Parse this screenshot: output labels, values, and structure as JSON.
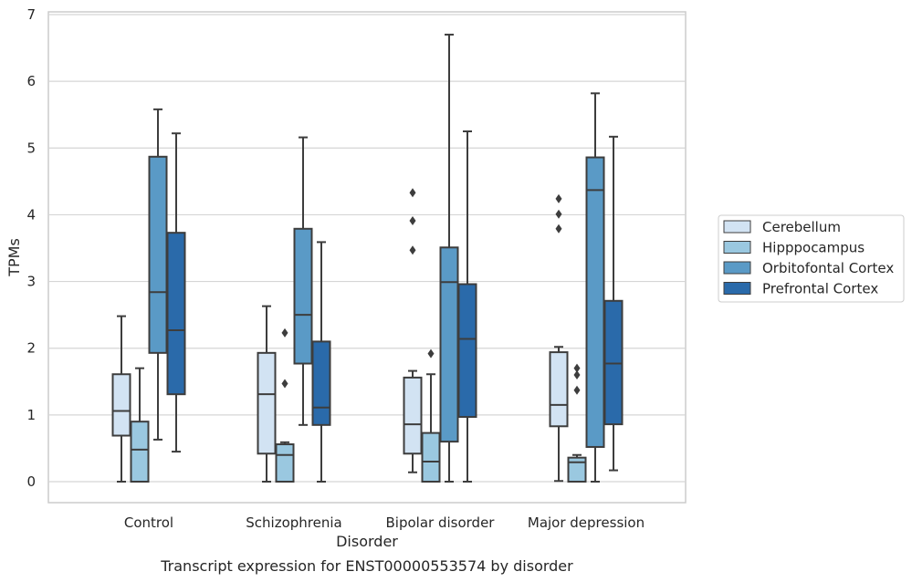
{
  "chart_data": {
    "type": "box",
    "xlabel": "Disorder",
    "ylabel": "TPMs",
    "caption": "Transcript expression for ENST00000553574 by disorder",
    "ylim": [
      -0.3,
      7.05
    ],
    "yticks": [
      0,
      1,
      2,
      3,
      4,
      5,
      6,
      7
    ],
    "grid": "horizontal",
    "legend_position": "right",
    "categories": [
      "Control",
      "Schizophrenia",
      "Bipolar disorder",
      "Major depression"
    ],
    "series": [
      {
        "name": "Cerebellum",
        "color": "#d2e3f3",
        "boxes": [
          {
            "whislo": 0.0,
            "q1": 0.69,
            "med": 1.06,
            "q3": 1.61,
            "whishi": 2.48,
            "fliers": []
          },
          {
            "whislo": 0.0,
            "q1": 0.42,
            "med": 1.31,
            "q3": 1.93,
            "whishi": 2.63,
            "fliers": []
          },
          {
            "whislo": 0.14,
            "q1": 0.42,
            "med": 0.86,
            "q3": 1.56,
            "whishi": 1.66,
            "fliers": [
              3.47,
              3.91,
              4.33
            ]
          },
          {
            "whislo": 0.01,
            "q1": 0.83,
            "med": 1.15,
            "q3": 1.94,
            "whishi": 2.02,
            "fliers": [
              3.79,
              4.01,
              4.24
            ]
          }
        ]
      },
      {
        "name": "Hipppocampus",
        "color": "#9ac8e0",
        "boxes": [
          {
            "whislo": 0.0,
            "q1": 0.0,
            "med": 0.48,
            "q3": 0.9,
            "whishi": 1.7,
            "fliers": []
          },
          {
            "whislo": 0.0,
            "q1": 0.0,
            "med": 0.4,
            "q3": 0.56,
            "whishi": 0.59,
            "fliers": [
              1.47,
              2.23
            ]
          },
          {
            "whislo": 0.0,
            "q1": 0.0,
            "med": 0.3,
            "q3": 0.73,
            "whishi": 1.61,
            "fliers": [
              1.92
            ]
          },
          {
            "whislo": 0.0,
            "q1": 0.0,
            "med": 0.29,
            "q3": 0.36,
            "whishi": 0.4,
            "fliers": [
              1.37,
              1.6,
              1.7
            ]
          }
        ]
      },
      {
        "name": "Orbitofontal Cortex",
        "color": "#5a9ac6",
        "boxes": [
          {
            "whislo": 0.63,
            "q1": 1.93,
            "med": 2.84,
            "q3": 4.87,
            "whishi": 5.58,
            "fliers": []
          },
          {
            "whislo": 0.85,
            "q1": 1.77,
            "med": 2.5,
            "q3": 3.79,
            "whishi": 5.16,
            "fliers": []
          },
          {
            "whislo": 0.0,
            "q1": 0.6,
            "med": 2.99,
            "q3": 3.51,
            "whishi": 6.7,
            "fliers": []
          },
          {
            "whislo": 0.0,
            "q1": 0.52,
            "med": 4.37,
            "q3": 4.86,
            "whishi": 5.82,
            "fliers": []
          }
        ]
      },
      {
        "name": "Prefrontal Cortex",
        "color": "#2a6aaa",
        "boxes": [
          {
            "whislo": 0.45,
            "q1": 1.31,
            "med": 2.27,
            "q3": 3.73,
            "whishi": 5.22,
            "fliers": []
          },
          {
            "whislo": 0.0,
            "q1": 0.85,
            "med": 1.11,
            "q3": 2.1,
            "whishi": 3.59,
            "fliers": []
          },
          {
            "whislo": 0.0,
            "q1": 0.97,
            "med": 2.14,
            "q3": 2.96,
            "whishi": 5.25,
            "fliers": []
          },
          {
            "whislo": 0.17,
            "q1": 0.86,
            "med": 1.77,
            "q3": 2.71,
            "whishi": 5.17,
            "fliers": []
          }
        ]
      }
    ]
  }
}
